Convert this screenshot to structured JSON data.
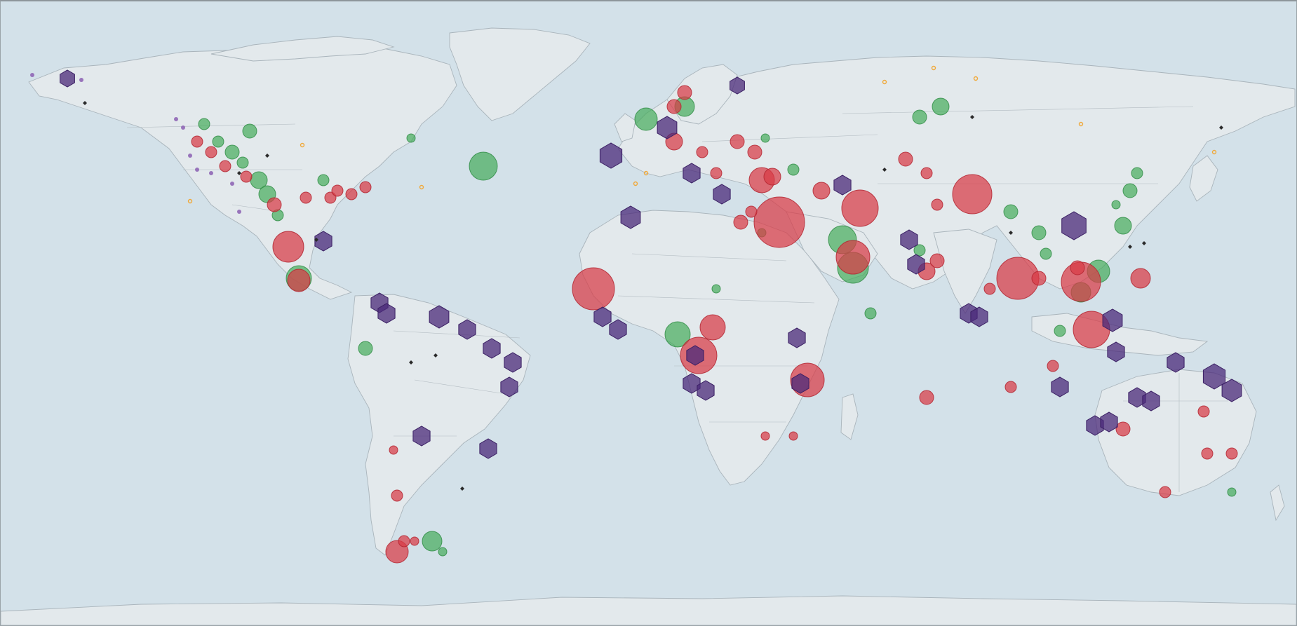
{
  "map": {
    "kind": "world-map",
    "colors": {
      "ocean": "#d3e1e9",
      "land": "#e3e9ec",
      "red": "#d83a45",
      "green": "#3faa55",
      "purple": "#4b2a7a",
      "black": "#2a2a2a",
      "orange": "#f0a93a"
    }
  }
}
